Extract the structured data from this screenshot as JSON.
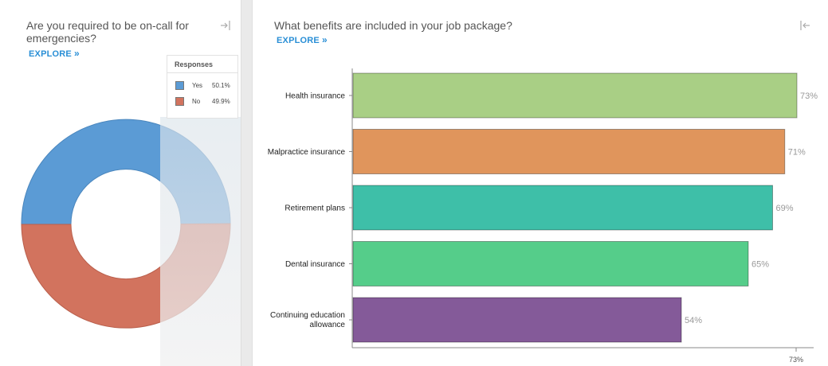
{
  "left": {
    "title_line1": "Are you required to be on-call for",
    "title_line2": "emergencies?",
    "explore_label": "EXPLORE",
    "explore_icon": "double-chevron-right-icon",
    "collapse_icon": "collapse-right-icon"
  },
  "right": {
    "title": "What benefits are included in your job package?",
    "explore_label": "EXPLORE",
    "explore_icon": "double-chevron-right-icon",
    "collapse_icon": "collapse-left-icon"
  },
  "chart_data": [
    {
      "type": "pie",
      "variant": "donut",
      "legend_title": "Responses",
      "legend_placement": "top-right",
      "slices": [
        {
          "label": "Yes",
          "value": 50.1,
          "value_label": "50.1%",
          "color": "#5b9bd5"
        },
        {
          "label": "No",
          "value": 49.9,
          "value_label": "49.9%",
          "color": "#d2735e"
        }
      ]
    },
    {
      "type": "bar",
      "orientation": "horizontal",
      "title": "What benefits are included in your job package?",
      "categories": [
        "Health insurance",
        "Malpractice insurance",
        "Retirement plans",
        "Dental insurance",
        "Continuing education allowance"
      ],
      "values": [
        73,
        71,
        69,
        65,
        54
      ],
      "value_labels": [
        "73%",
        "71%",
        "69%",
        "65%",
        "54%"
      ],
      "colors": [
        "#a9cf85",
        "#e0955c",
        "#3ebfa8",
        "#55cd8a",
        "#845a99"
      ],
      "xlim": [
        0,
        73
      ],
      "x_tick_labels": [
        "73%"
      ],
      "grid": false
    }
  ]
}
